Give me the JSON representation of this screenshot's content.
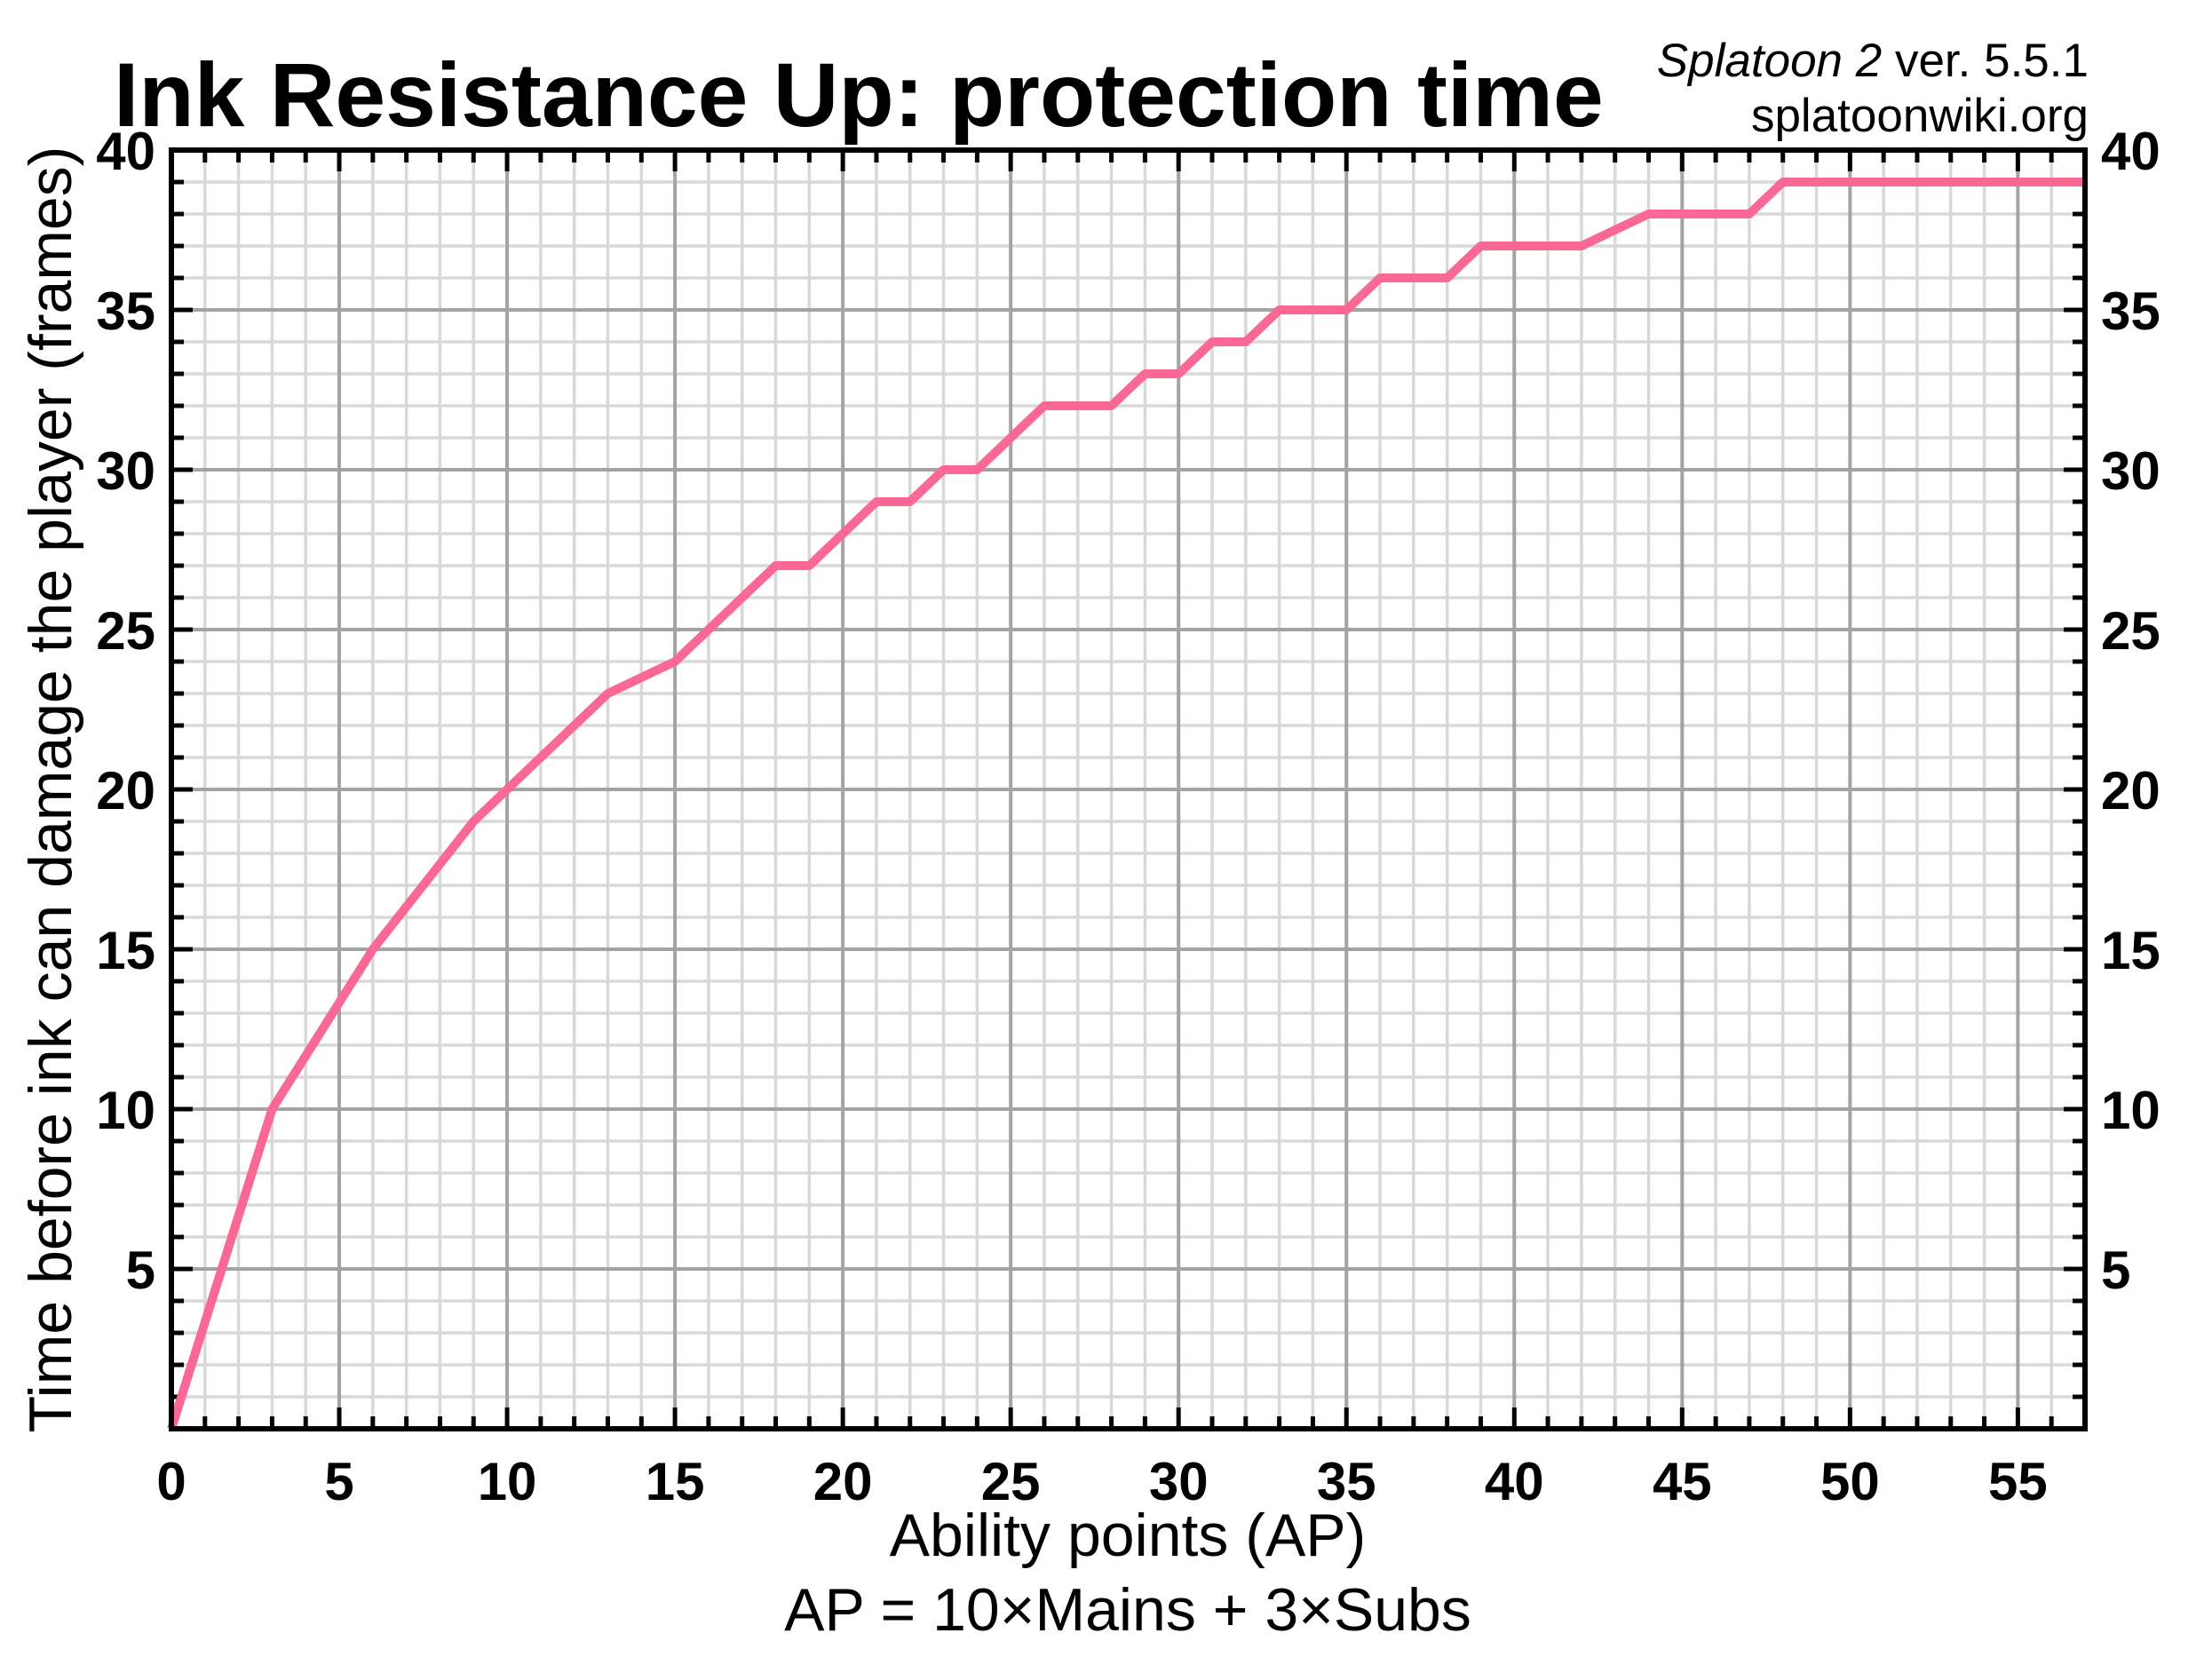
{
  "title": "Ink Resistance Up: protection time",
  "annotation": {
    "game_title": "Splatoon 2",
    "version_suffix": " ver. 5.5.1",
    "site": "splatoonwiki.org"
  },
  "chart_data": {
    "type": "line",
    "title": "Ink Resistance Up: protection time",
    "xlabel": "Ability points (AP)",
    "xlabel_note": "AP = 10×Mains + 3×Subs",
    "ylabel": "Time before ink can damage the player (frames)",
    "xlim": [
      0,
      57
    ],
    "ylim": [
      0,
      40
    ],
    "x_major_ticks": [
      0,
      5,
      10,
      15,
      20,
      25,
      30,
      35,
      40,
      45,
      50,
      55
    ],
    "y_major_ticks": [
      5,
      10,
      15,
      20,
      25,
      30,
      35,
      40
    ],
    "minor_tick_step": 1,
    "grid": "minor and major gridlines on",
    "legend": "none",
    "series": [
      {
        "name": "protection time (frames)",
        "color": "#fa6996",
        "x": [
          0,
          3,
          6,
          9,
          10,
          12,
          13,
          15,
          16,
          18,
          19,
          20,
          21,
          22,
          23,
          24,
          25,
          26,
          27,
          28,
          29,
          30,
          31,
          32,
          33,
          34,
          35,
          36,
          37,
          38,
          39,
          41,
          42,
          44,
          45,
          47,
          48,
          51,
          54,
          57
        ],
        "y": [
          0,
          10,
          15,
          19,
          20,
          22,
          23,
          24,
          25,
          27,
          27,
          28,
          29,
          29,
          30,
          30,
          31,
          32,
          32,
          32,
          33,
          33,
          34,
          34,
          35,
          35,
          35,
          36,
          36,
          36,
          37,
          37,
          37,
          38,
          38,
          38,
          39,
          39,
          39,
          39
        ]
      }
    ]
  },
  "colors": {
    "background": "#ffffff",
    "frame": "#000000",
    "minor_grid": "#d8d8d8",
    "major_grid": "#a3a3a3",
    "line": "#fa6996",
    "text": "#000000"
  }
}
